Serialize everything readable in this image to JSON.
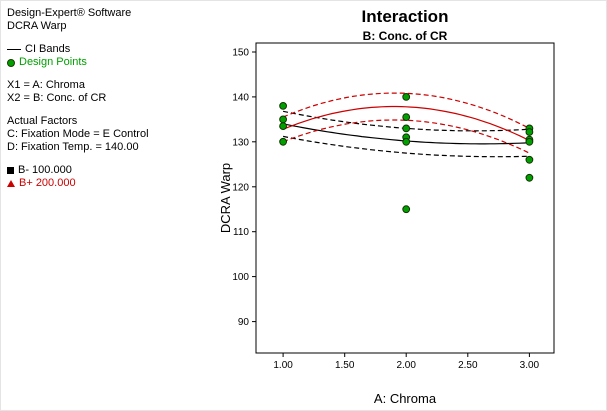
{
  "colors": {
    "black": "#000000",
    "red": "#cc0000",
    "green": "#00a000"
  },
  "sidebar": {
    "software": "Design-Expert® Software",
    "response": "DCRA Warp",
    "legend": [
      {
        "marker": "ci-line",
        "label": "CI Bands"
      },
      {
        "marker": "design-point",
        "label": "Design Points"
      }
    ],
    "x1": "X1 = A: Chroma",
    "x2": "X2 = B: Conc. of CR",
    "actual_factors_heading": "Actual Factors",
    "factors": [
      "C: Fixation Mode = E Control",
      "D: Fixation Temp. = 140.00"
    ],
    "series_legend": [
      {
        "marker": "square",
        "color": "#000000",
        "label": "B- 100.000"
      },
      {
        "marker": "triangle",
        "color": "#cc0000",
        "label": "B+ 200.000"
      }
    ]
  },
  "chart_data": {
    "type": "line",
    "title": "Interaction",
    "subtitle": "B: Conc. of CR",
    "xlabel": "A: Chroma",
    "ylabel": "DCRA Warp",
    "xlim": [
      0.78,
      3.2
    ],
    "ylim": [
      83,
      152
    ],
    "xticks": [
      "1.00",
      "1.50",
      "2.00",
      "2.50",
      "3.00"
    ],
    "yticks": [
      90,
      100,
      110,
      120,
      130,
      140,
      150
    ],
    "grid": false,
    "legend_position": "left-panel",
    "x": [
      1,
      2,
      3
    ],
    "series": [
      {
        "name": "B- 100.000 mean",
        "color": "#000000",
        "dash": false,
        "y": [
          134,
          130.2,
          129.8
        ]
      },
      {
        "name": "B- CI upper",
        "color": "#000000",
        "dash": true,
        "y": [
          136.8,
          133,
          132.8
        ]
      },
      {
        "name": "B- CI lower",
        "color": "#000000",
        "dash": true,
        "y": [
          131.2,
          127.5,
          126.8
        ]
      },
      {
        "name": "B+ 200.000 mean",
        "color": "#cc0000",
        "dash": false,
        "y": [
          132.8,
          137.8,
          130.3
        ]
      },
      {
        "name": "B+ CI upper",
        "color": "#cc0000",
        "dash": true,
        "y": [
          135.5,
          140.8,
          133
        ]
      },
      {
        "name": "B+ CI lower",
        "color": "#cc0000",
        "dash": true,
        "y": [
          130,
          134.8,
          127.5
        ]
      }
    ],
    "design_points": [
      {
        "x": 1,
        "y": 138
      },
      {
        "x": 1,
        "y": 135
      },
      {
        "x": 1,
        "y": 133.5
      },
      {
        "x": 1,
        "y": 130
      },
      {
        "x": 2,
        "y": 140
      },
      {
        "x": 2,
        "y": 135.5
      },
      {
        "x": 2,
        "y": 133
      },
      {
        "x": 2,
        "y": 131
      },
      {
        "x": 2,
        "y": 130
      },
      {
        "x": 2,
        "y": 115
      },
      {
        "x": 3,
        "y": 133
      },
      {
        "x": 3,
        "y": 132.2
      },
      {
        "x": 3,
        "y": 130.5
      },
      {
        "x": 3,
        "y": 130
      },
      {
        "x": 3,
        "y": 126
      },
      {
        "x": 3,
        "y": 122
      }
    ],
    "point_color": "#00a000"
  }
}
